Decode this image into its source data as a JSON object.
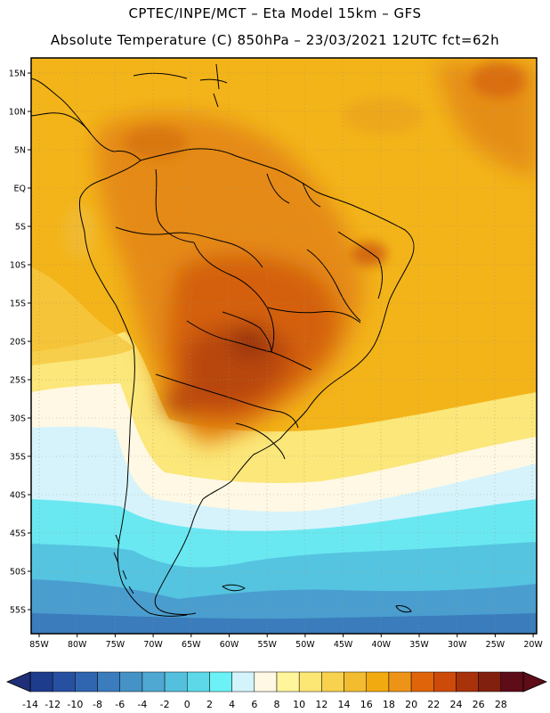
{
  "header": {
    "line1": "CPTEC/INPE/MCT –  Eta Model 15km – GFS",
    "line2": "Absolute Temperature (C) 850hPa – 23/03/2021 12UTC fct=62h"
  },
  "map": {
    "lat_labels": [
      "15N",
      "10N",
      "5N",
      "EQ",
      "5S",
      "10S",
      "15S",
      "20S",
      "25S",
      "30S",
      "35S",
      "40S",
      "45S",
      "50S",
      "55S"
    ],
    "lon_labels": [
      "85W",
      "80W",
      "75W",
      "70W",
      "65W",
      "60W",
      "55W",
      "50W",
      "45W",
      "40W",
      "35W",
      "30W",
      "25W",
      "20W"
    ]
  },
  "colorbar": {
    "labels": [
      "-14",
      "-12",
      "-10",
      "-8",
      "-6",
      "-4",
      "-2",
      "0",
      "2",
      "4",
      "6",
      "8",
      "10",
      "12",
      "14",
      "16",
      "18",
      "20",
      "22",
      "24",
      "26",
      "28"
    ],
    "colors": [
      "#1e3c8c",
      "#2850a0",
      "#3066b0",
      "#3a7cbc",
      "#4592c6",
      "#4ea8d2",
      "#55c0de",
      "#5cd8e8",
      "#6cf2f6",
      "#d2f4fa",
      "#fff8e4",
      "#fff59a",
      "#fce674",
      "#f8d24e",
      "#f3bc30",
      "#f1aa10",
      "#ed9418",
      "#e0640a",
      "#cc4a0a",
      "#a8320a",
      "#822010",
      "#5e0c18"
    ]
  }
}
